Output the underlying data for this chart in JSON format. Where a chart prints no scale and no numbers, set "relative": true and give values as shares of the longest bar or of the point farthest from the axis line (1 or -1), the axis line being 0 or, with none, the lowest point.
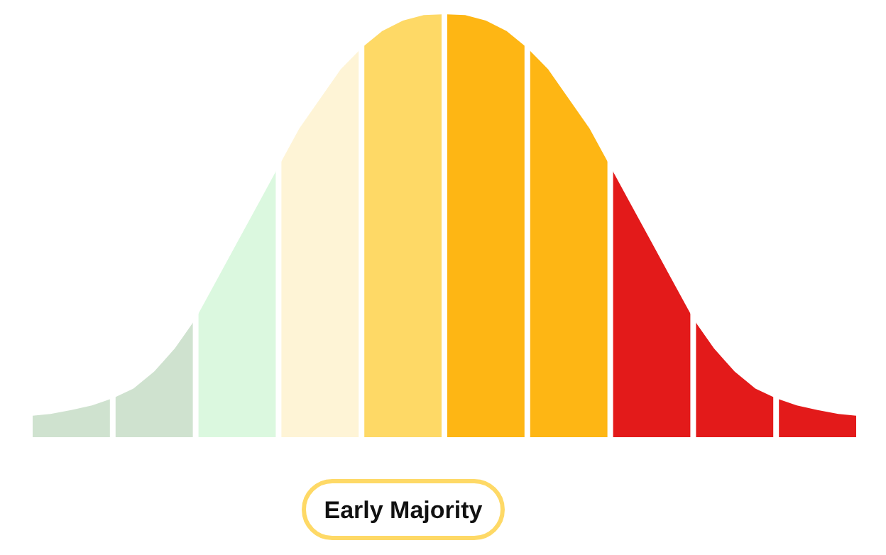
{
  "chart_data": {
    "type": "area",
    "relative": true,
    "categories": [
      null,
      null,
      null,
      null,
      null,
      null,
      null,
      null,
      null,
      null,
      null,
      null,
      null,
      null,
      null,
      null,
      null,
      null,
      null,
      null,
      null,
      null,
      null,
      null,
      null,
      null,
      null,
      null,
      null,
      null,
      null,
      null,
      null,
      null,
      null,
      null,
      null,
      null,
      null,
      null,
      null
    ],
    "annotations": [
      "Early Majority"
    ],
    "series": [
      {
        "color": "#cfe2cf",
        "values": [
          0.05,
          0.055,
          0.064,
          0.075,
          0.092,
          null,
          null,
          null,
          null,
          null,
          null,
          null,
          null,
          null,
          null,
          null,
          null,
          null,
          null,
          null,
          null,
          null,
          null,
          null,
          null,
          null,
          null,
          null,
          null,
          null,
          null,
          null,
          null,
          null,
          null,
          null,
          null,
          null,
          null,
          null,
          null
        ]
      },
      {
        "color": "#cfe2cf",
        "values": [
          null,
          null,
          null,
          null,
          0.092,
          0.115,
          0.155,
          0.21,
          0.28,
          null,
          null,
          null,
          null,
          null,
          null,
          null,
          null,
          null,
          null,
          null,
          null,
          null,
          null,
          null,
          null,
          null,
          null,
          null,
          null,
          null,
          null,
          null,
          null,
          null,
          null,
          null,
          null,
          null,
          null,
          null,
          null
        ]
      },
      {
        "color": "#dbf8df",
        "values": [
          null,
          null,
          null,
          null,
          null,
          null,
          null,
          null,
          0.28,
          0.37,
          0.46,
          0.55,
          0.64,
          null,
          null,
          null,
          null,
          null,
          null,
          null,
          null,
          null,
          null,
          null,
          null,
          null,
          null,
          null,
          null,
          null,
          null,
          null,
          null,
          null,
          null,
          null,
          null,
          null,
          null,
          null,
          null
        ]
      },
      {
        "color": "#fef4d6",
        "values": [
          null,
          null,
          null,
          null,
          null,
          null,
          null,
          null,
          null,
          null,
          null,
          null,
          0.64,
          0.73,
          0.8,
          0.87,
          0.92,
          null,
          null,
          null,
          null,
          null,
          null,
          null,
          null,
          null,
          null,
          null,
          null,
          null,
          null,
          null,
          null,
          null,
          null,
          null,
          null,
          null,
          null,
          null,
          null
        ]
      },
      {
        "color": "#fed966",
        "values": [
          null,
          null,
          null,
          null,
          null,
          null,
          null,
          null,
          null,
          null,
          null,
          null,
          null,
          null,
          null,
          null,
          0.92,
          0.96,
          0.985,
          0.998,
          1,
          null,
          null,
          null,
          null,
          null,
          null,
          null,
          null,
          null,
          null,
          null,
          null,
          null,
          null,
          null,
          null,
          null,
          null,
          null,
          null
        ]
      },
      {
        "color": "#feb614",
        "values": [
          null,
          null,
          null,
          null,
          null,
          null,
          null,
          null,
          null,
          null,
          null,
          null,
          null,
          null,
          null,
          null,
          null,
          null,
          null,
          null,
          1,
          0.998,
          0.985,
          0.96,
          0.92,
          null,
          null,
          null,
          null,
          null,
          null,
          null,
          null,
          null,
          null,
          null,
          null,
          null,
          null,
          null,
          null
        ]
      },
      {
        "color": "#feb614",
        "values": [
          null,
          null,
          null,
          null,
          null,
          null,
          null,
          null,
          null,
          null,
          null,
          null,
          null,
          null,
          null,
          null,
          null,
          null,
          null,
          null,
          null,
          null,
          null,
          null,
          0.92,
          0.87,
          0.8,
          0.73,
          0.64,
          null,
          null,
          null,
          null,
          null,
          null,
          null,
          null,
          null,
          null,
          null,
          null
        ]
      },
      {
        "color": "#e31a1a",
        "values": [
          null,
          null,
          null,
          null,
          null,
          null,
          null,
          null,
          null,
          null,
          null,
          null,
          null,
          null,
          null,
          null,
          null,
          null,
          null,
          null,
          null,
          null,
          null,
          null,
          null,
          null,
          null,
          null,
          0.64,
          0.55,
          0.46,
          0.37,
          0.28,
          null,
          null,
          null,
          null,
          null,
          null,
          null,
          null
        ]
      },
      {
        "color": "#e31a1a",
        "values": [
          null,
          null,
          null,
          null,
          null,
          null,
          null,
          null,
          null,
          null,
          null,
          null,
          null,
          null,
          null,
          null,
          null,
          null,
          null,
          null,
          null,
          null,
          null,
          null,
          null,
          null,
          null,
          null,
          null,
          null,
          null,
          null,
          0.28,
          0.21,
          0.155,
          0.115,
          0.092,
          null,
          null,
          null,
          null
        ]
      },
      {
        "color": "#e31a1a",
        "values": [
          null,
          null,
          null,
          null,
          null,
          null,
          null,
          null,
          null,
          null,
          null,
          null,
          null,
          null,
          null,
          null,
          null,
          null,
          null,
          null,
          null,
          null,
          null,
          null,
          null,
          null,
          null,
          null,
          null,
          null,
          null,
          null,
          null,
          null,
          null,
          null,
          0.092,
          0.075,
          0.064,
          0.055,
          0.05
        ]
      }
    ]
  }
}
